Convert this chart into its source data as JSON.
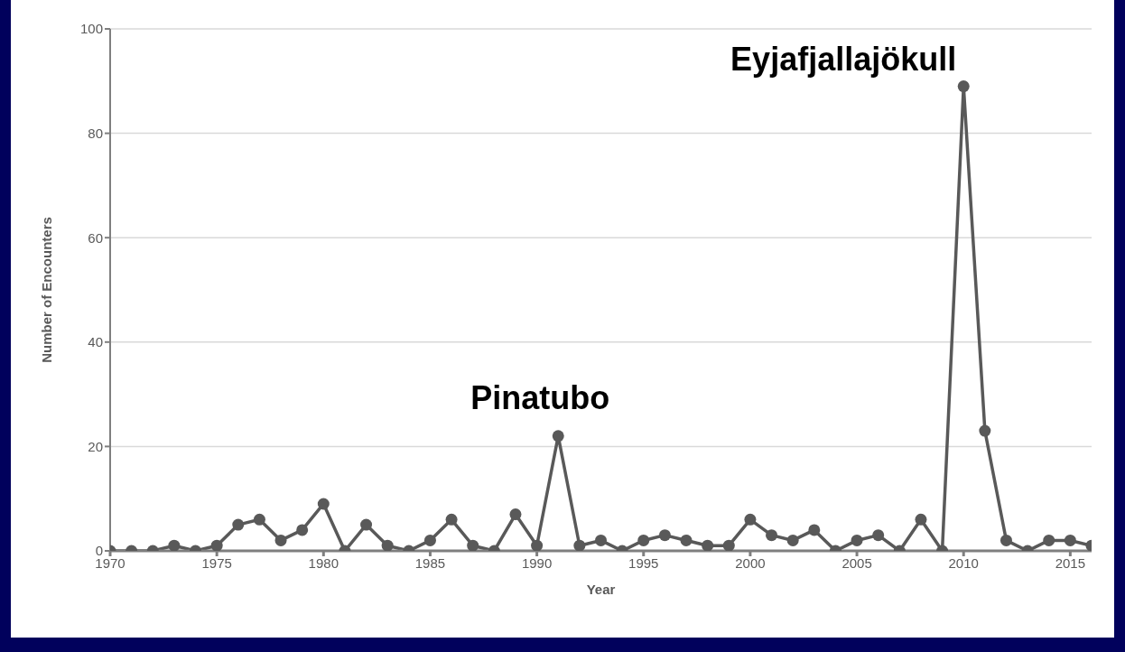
{
  "chart_data": {
    "type": "line",
    "xlabel": "Year",
    "ylabel": "Number of Encounters",
    "x": [
      1970,
      1971,
      1972,
      1973,
      1974,
      1975,
      1976,
      1977,
      1978,
      1979,
      1980,
      1981,
      1982,
      1983,
      1984,
      1985,
      1986,
      1987,
      1988,
      1989,
      1990,
      1991,
      1992,
      1993,
      1994,
      1995,
      1996,
      1997,
      1998,
      1999,
      2000,
      2001,
      2002,
      2003,
      2004,
      2005,
      2006,
      2007,
      2008,
      2009,
      2010,
      2011,
      2012,
      2013,
      2014,
      2015,
      2016
    ],
    "series": [
      {
        "color": "#595959",
        "values": [
          0,
          0,
          0,
          1,
          0,
          1,
          5,
          6,
          2,
          4,
          9,
          0,
          5,
          1,
          0,
          2,
          6,
          1,
          0,
          7,
          1,
          22,
          1,
          2,
          0,
          2,
          3,
          2,
          1,
          1,
          6,
          3,
          2,
          4,
          0,
          2,
          3,
          0,
          6,
          0,
          89,
          23,
          2,
          0,
          2,
          2,
          1
        ]
      }
    ],
    "xlim": [
      1970,
      2016
    ],
    "xticks": [
      1970,
      1975,
      1980,
      1985,
      1990,
      1995,
      2000,
      2005,
      2010,
      2015
    ],
    "ylim": [
      0,
      100
    ],
    "yticks": [
      0,
      20,
      40,
      60,
      80,
      100
    ],
    "grid": "y",
    "marker": "circle",
    "line_style": "solid",
    "annotations": [
      {
        "text": "Pinatubo",
        "x": 1991,
        "y": 22
      },
      {
        "text": "Eyjafjallajökull",
        "x": 2010,
        "y": 89
      }
    ]
  }
}
